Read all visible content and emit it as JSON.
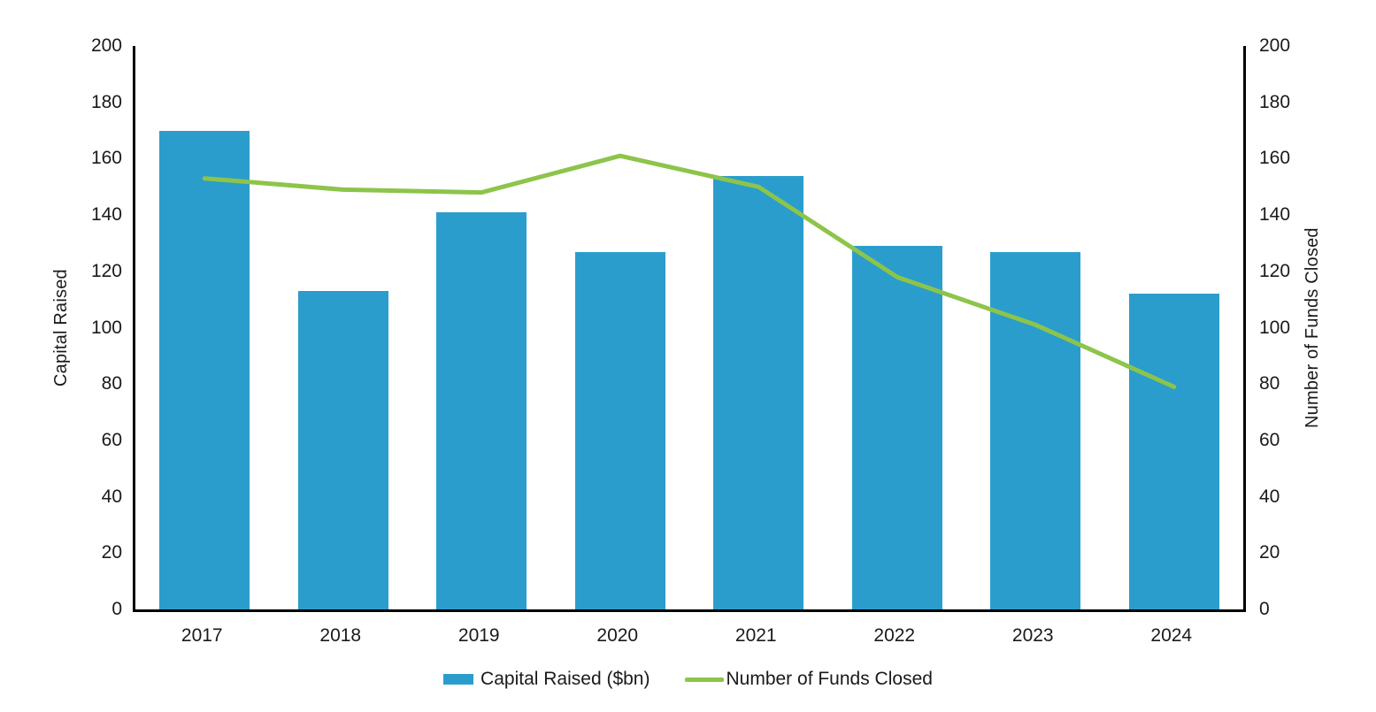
{
  "chart_data": {
    "type": "combo-bar-line",
    "categories": [
      "2017",
      "2018",
      "2019",
      "2020",
      "2021",
      "2022",
      "2023",
      "2024"
    ],
    "series": [
      {
        "name": "Capital Raised ($bn)",
        "type": "bar",
        "axis": "left",
        "color": "#2B9DCC",
        "values": [
          170,
          113,
          141,
          127,
          154,
          129,
          127,
          112
        ]
      },
      {
        "name": "Number of Funds Closed",
        "type": "line",
        "axis": "right",
        "color": "#8DC44A",
        "values": [
          153,
          149,
          148,
          161,
          150,
          118,
          101,
          79
        ]
      }
    ],
    "title": "",
    "xlabel": "",
    "ylabel_left": "Capital Raised",
    "ylabel_right": "Number of Funds Closed",
    "ylim_left": [
      0,
      200
    ],
    "ylim_right": [
      0,
      200
    ],
    "yticks_left": [
      "0",
      "20",
      "40",
      "60",
      "80",
      "100",
      "120",
      "140",
      "160",
      "180",
      "200"
    ],
    "yticks_right": [
      "0",
      "20",
      "40",
      "60",
      "80",
      "100",
      "120",
      "140",
      "160",
      "180",
      "200"
    ],
    "grid": false,
    "legend_position": "bottom",
    "axis_color": "#000000",
    "text_color": "#1a1a1a"
  }
}
